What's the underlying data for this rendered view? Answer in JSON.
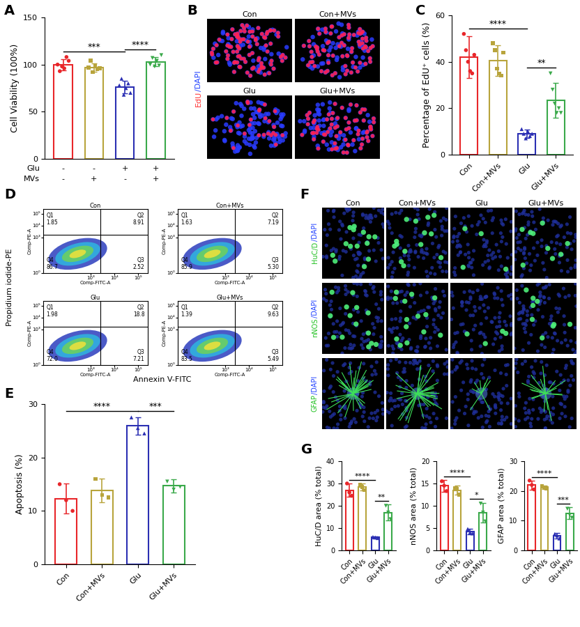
{
  "chart_data": [
    {
      "type": "bar",
      "panel_label": "A",
      "y_label": "Cell Viability (100%)",
      "categories": [
        null,
        null,
        null,
        null
      ],
      "condition_rows": [
        {
          "name": "Glu",
          "marks": [
            "-",
            "-",
            "+",
            "+"
          ]
        },
        {
          "name": "MVs",
          "marks": [
            "-",
            "+",
            "-",
            "+"
          ]
        }
      ],
      "values": [
        100,
        97,
        76,
        103
      ],
      "errors": [
        6,
        4.5,
        6.5,
        5
      ],
      "points": [
        [
          100,
          93,
          98,
          96,
          108,
          104
        ],
        [
          97,
          104,
          92,
          99,
          95,
          96
        ],
        [
          78,
          85,
          68,
          75,
          80,
          70
        ],
        [
          100,
          107,
          98,
          104,
          99,
          110
        ]
      ],
      "colors": [
        "#e8262a",
        "#b8a43c",
        "#2b2fb3",
        "#3aa94a"
      ],
      "ylim": [
        0,
        150
      ],
      "yticks": [
        0,
        50,
        100,
        150
      ],
      "significance": [
        {
          "from": 0,
          "to": 2,
          "label": "***"
        },
        {
          "from": 2,
          "to": 3,
          "label": "****"
        }
      ]
    },
    {
      "type": "bar",
      "panel_label": "C",
      "y_label": "Percentage of EdU⁺ cells (%)",
      "categories": [
        "Con",
        "Con+MVs",
        "Glu",
        "Glu+MVs"
      ],
      "values": [
        42,
        40.5,
        9,
        23.5
      ],
      "errors": [
        9,
        6.5,
        1.8,
        7.5
      ],
      "points": [
        [
          52,
          45,
          40,
          36,
          35,
          43
        ],
        [
          48,
          45,
          37,
          35,
          34,
          44
        ],
        [
          11,
          9,
          7,
          10,
          8,
          9
        ],
        [
          35,
          28,
          22,
          18,
          20,
          18
        ]
      ],
      "colors": [
        "#e8262a",
        "#b8a43c",
        "#2b2fb3",
        "#3aa94a"
      ],
      "ylim": [
        0,
        60
      ],
      "yticks": [
        0,
        20,
        40,
        60
      ],
      "significance": [
        {
          "from": 0,
          "to": 2,
          "label": "****"
        },
        {
          "from": 2,
          "to": 3,
          "label": "**"
        }
      ]
    },
    {
      "type": "bar",
      "panel_label": "E",
      "y_label": "Apoptosis (%)",
      "categories": [
        "Con",
        "Con+MVs",
        "Glu",
        "Glu+MVs"
      ],
      "values": [
        12.3,
        13.8,
        25.9,
        14.7
      ],
      "errors": [
        2.8,
        2.2,
        1.6,
        1.2
      ],
      "points": [
        [
          15,
          12,
          10
        ],
        [
          16,
          13,
          12.5
        ],
        [
          27.5,
          25.5,
          24.5
        ],
        [
          15.5,
          14,
          14.5
        ]
      ],
      "colors": [
        "#e8262a",
        "#b8a43c",
        "#2b2fb3",
        "#3aa94a"
      ],
      "ylim": [
        0,
        30
      ],
      "yticks": [
        0,
        10,
        20,
        30
      ],
      "significance": [
        {
          "from": 0,
          "to": 2,
          "label": "****"
        },
        {
          "from": 2,
          "to": 3,
          "label": "***"
        }
      ]
    },
    {
      "type": "bar",
      "panel_label": "G",
      "y_label": "HuC/D area (% total)",
      "categories": [
        "Con",
        "Con+MVs",
        "Glu",
        "Glu+MVs"
      ],
      "values": [
        27,
        28.5,
        5.8,
        17
      ],
      "errors": [
        3,
        1.5,
        0.6,
        3.5
      ],
      "points": [
        [
          30,
          26,
          24.5
        ],
        [
          29.5,
          28.5,
          27
        ],
        [
          6,
          5.8,
          5.5
        ],
        [
          20,
          17,
          14
        ]
      ],
      "colors": [
        "#e8262a",
        "#b8a43c",
        "#2b2fb3",
        "#3aa94a"
      ],
      "ylim": [
        0,
        40
      ],
      "yticks": [
        0,
        10,
        20,
        30,
        40
      ],
      "significance": [
        {
          "from": 0,
          "to": 2,
          "label": "****"
        },
        {
          "from": 2,
          "to": 3,
          "label": "**"
        }
      ]
    },
    {
      "type": "bar",
      "y_label": "nNOS area (% total)",
      "categories": [
        "Con",
        "Con+MVs",
        "Glu",
        "Glu+MVs"
      ],
      "values": [
        14.5,
        13.5,
        4.2,
        8.5
      ],
      "errors": [
        1.3,
        1.0,
        0.6,
        2.2
      ],
      "points": [
        [
          15.5,
          14.5,
          13.3
        ],
        [
          14,
          13.8,
          12.5
        ],
        [
          4.8,
          4,
          3.8
        ],
        [
          10.5,
          8.5,
          6.5
        ]
      ],
      "colors": [
        "#e8262a",
        "#b8a43c",
        "#2b2fb3",
        "#3aa94a"
      ],
      "ylim": [
        0,
        20
      ],
      "yticks": [
        0,
        5,
        10,
        15,
        20
      ],
      "significance": [
        {
          "from": 0,
          "to": 2,
          "label": "****"
        },
        {
          "from": 2,
          "to": 3,
          "label": "*"
        }
      ]
    },
    {
      "type": "bar",
      "y_label": "GFAP area (% total)",
      "categories": [
        "Con",
        "Con+MVs",
        "Glu",
        "Glu+MVs"
      ],
      "values": [
        22,
        21.2,
        5,
        12.5
      ],
      "errors": [
        1.5,
        0.5,
        0.9,
        2
      ],
      "points": [
        [
          23.5,
          22,
          20.5
        ],
        [
          21.5,
          21.2,
          20.8
        ],
        [
          5.5,
          5,
          4
        ],
        [
          14,
          12,
          11
        ]
      ],
      "colors": [
        "#e8262a",
        "#b8a43c",
        "#2b2fb3",
        "#3aa94a"
      ],
      "ylim": [
        0,
        30
      ],
      "yticks": [
        0,
        10,
        20,
        30
      ],
      "significance": [
        {
          "from": 0,
          "to": 2,
          "label": "****"
        },
        {
          "from": 2,
          "to": 3,
          "label": "***"
        }
      ]
    }
  ],
  "edu_images": {
    "panel_label": "B",
    "titles": [
      "Con",
      "Con+MVs",
      "Glu",
      "Glu+MVs"
    ],
    "label_parts": [
      {
        "text": "EdU",
        "color": "#ff3030"
      },
      {
        "text": "/DAPI",
        "color": "#2040ff"
      }
    ]
  },
  "flow_cytometry": {
    "panel_label": "D",
    "y_label": "Propidium iodide-PE",
    "x_label": "Annexin V-FITC",
    "plot_x_label": "Comp-FITC-A",
    "plot_y_label": "Comp-PE-A",
    "log": true,
    "xlim": [
      10,
      250000
    ],
    "ylim": [
      1,
      250000
    ],
    "xticks": [
      {
        "value": 1000,
        "label": "10³"
      },
      {
        "value": 10000,
        "label": "10⁴"
      },
      {
        "value": 100000,
        "label": "10⁵"
      }
    ],
    "yticks": [
      {
        "value": 1,
        "label": "10⁰"
      },
      {
        "value": 1000,
        "label": "10³"
      },
      {
        "value": 10000,
        "label": "10⁴"
      },
      {
        "value": 100000,
        "label": "10⁵"
      }
    ],
    "gate": {
      "x": 2500,
      "y": 1700
    },
    "plots": [
      {
        "title": "Con",
        "quadrants": [
          {
            "name": "Q1",
            "value": 1.85,
            "label": "1.85"
          },
          {
            "name": "Q2",
            "value": 8.91,
            "label": "8.91"
          },
          {
            "name": "Q3",
            "value": 2.52,
            "label": "2.52"
          },
          {
            "name": "Q4",
            "value": 86.7,
            "label": "86.7"
          }
        ]
      },
      {
        "title": "Con+MVs",
        "quadrants": [
          {
            "name": "Q1",
            "value": 1.63,
            "label": "1.63"
          },
          {
            "name": "Q2",
            "value": 7.19,
            "label": "7.19"
          },
          {
            "name": "Q3",
            "value": 5.3,
            "label": "5.30"
          },
          {
            "name": "Q4",
            "value": 85.9,
            "label": "85.9"
          }
        ]
      },
      {
        "title": "Glu",
        "quadrants": [
          {
            "name": "Q1",
            "value": 1.98,
            "label": "1.98"
          },
          {
            "name": "Q2",
            "value": 18.8,
            "label": "18.8"
          },
          {
            "name": "Q3",
            "value": 7.21,
            "label": "7.21"
          },
          {
            "name": "Q4",
            "value": 72.0,
            "label": "72.0"
          }
        ]
      },
      {
        "title": "Glu+MVs",
        "quadrants": [
          {
            "name": "Q1",
            "value": 1.39,
            "label": "1.39"
          },
          {
            "name": "Q2",
            "value": 9.63,
            "label": "9.63"
          },
          {
            "name": "Q3",
            "value": 5.49,
            "label": "5.49"
          },
          {
            "name": "Q4",
            "value": 83.5,
            "label": "83.5"
          }
        ]
      }
    ]
  },
  "immunofluorescence": {
    "panel_label": "F",
    "columns": [
      "Con",
      "Con+MVs",
      "Glu",
      "Glu+MVs"
    ],
    "rows": [
      {
        "label_parts": [
          {
            "text": "HuC/D",
            "color": "#20c020"
          },
          {
            "text": "/DAPI",
            "color": "#2040ff"
          }
        ]
      },
      {
        "label_parts": [
          {
            "text": "nNOS",
            "color": "#20c020"
          },
          {
            "text": "/DAPI",
            "color": "#2040ff"
          }
        ]
      },
      {
        "label_parts": [
          {
            "text": "GFAP",
            "color": "#20c020"
          },
          {
            "text": "/DAPI",
            "color": "#2040ff"
          }
        ]
      }
    ]
  }
}
